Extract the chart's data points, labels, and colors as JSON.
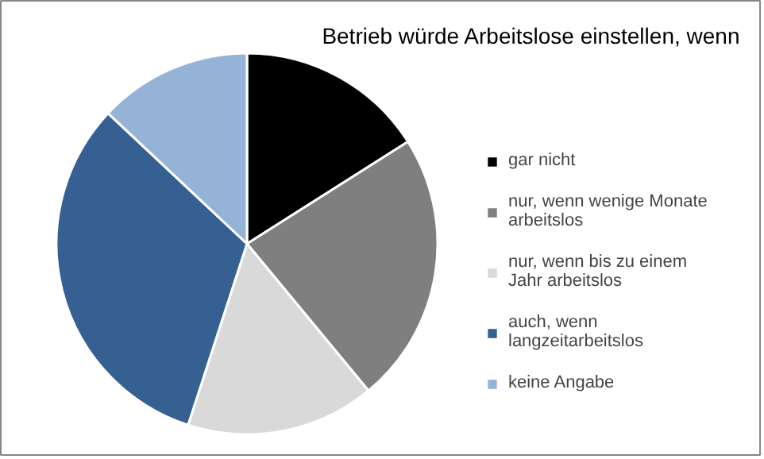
{
  "chart_data": {
    "type": "pie",
    "title": "Betrieb würde Arbeitslose einstellen, wenn",
    "categories": [
      "gar nicht",
      "nur, wenn wenige Monate arbeitslos",
      "nur, wenn bis zu einem Jahr arbeitslos",
      "auch, wenn langzeitarbeitslos",
      "keine Angabe"
    ],
    "values": [
      16,
      23,
      16,
      32,
      13
    ],
    "colors": [
      "#000000",
      "#7f7f7f",
      "#d9d9d9",
      "#376092",
      "#95b3d7"
    ],
    "legend": "right"
  }
}
